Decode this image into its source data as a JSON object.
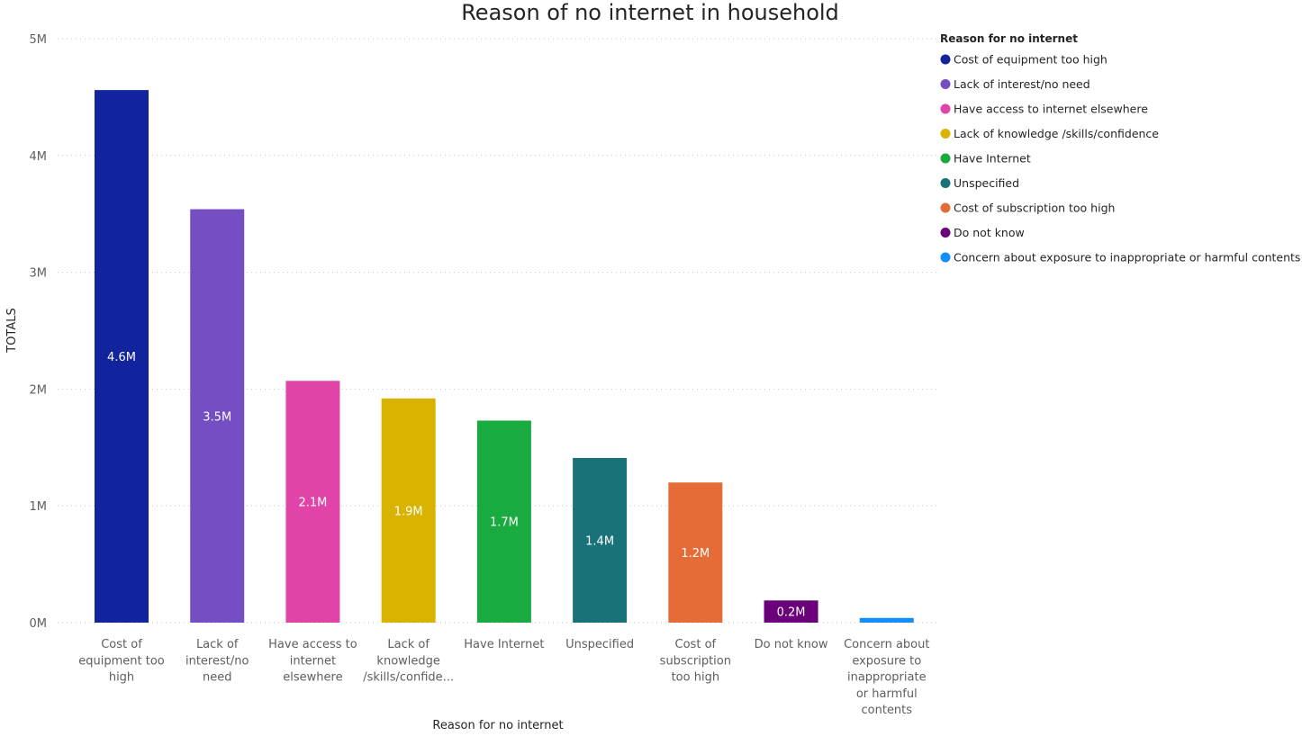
{
  "chart_data": {
    "type": "bar",
    "title": "Reason of no internet in household",
    "xlabel": "Reason for no internet",
    "ylabel": "TOTALS",
    "ylim": [
      0,
      5000000
    ],
    "yticks": [
      0,
      1000000,
      2000000,
      3000000,
      4000000,
      5000000
    ],
    "ytick_labels": [
      "0M",
      "1M",
      "2M",
      "3M",
      "4M",
      "5M"
    ],
    "grid": true,
    "legend_title": "Reason for no internet",
    "legend_position": "right",
    "categories": [
      "Cost of equipment too high",
      "Lack of interest/no need",
      "Have access to internet elsewhere",
      "Lack of knowledge /skills/confidence",
      "Have Internet",
      "Unspecified",
      "Cost of subscription too high",
      "Do not know",
      "Concern about exposure to inappropriate or harmful contents"
    ],
    "category_tick_labels": [
      [
        "Cost of",
        "equipment too",
        "high"
      ],
      [
        "Lack of",
        "interest/no",
        "need"
      ],
      [
        "Have access to",
        "internet",
        "elsewhere"
      ],
      [
        "Lack of",
        "knowledge",
        "/skills/confide..."
      ],
      [
        "Have Internet"
      ],
      [
        "Unspecified"
      ],
      [
        "Cost of",
        "subscription",
        "too high"
      ],
      [
        "Do not know"
      ],
      [
        "Concern about",
        "exposure to",
        "inappropriate",
        "or harmful",
        "contents"
      ]
    ],
    "values": [
      4560000,
      3540000,
      2070000,
      1920000,
      1730000,
      1410000,
      1200000,
      190000,
      40000
    ],
    "data_labels": [
      "4.6M",
      "3.5M",
      "2.1M",
      "1.9M",
      "1.7M",
      "1.4M",
      "1.2M",
      "0.2M",
      ""
    ],
    "colors": [
      "#12239e",
      "#744ec2",
      "#e044a7",
      "#d9b300",
      "#1aab40",
      "#197278",
      "#e66c37",
      "#6b007b",
      "#118dff"
    ]
  }
}
